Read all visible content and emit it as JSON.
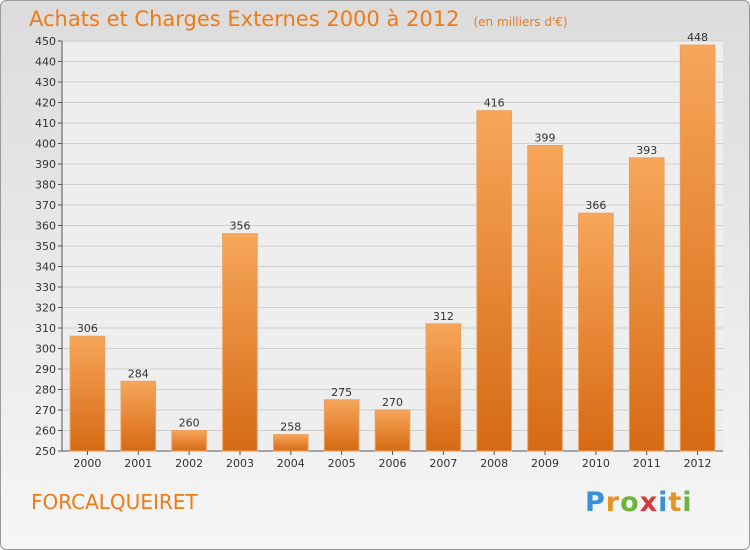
{
  "title": "Achats et Charges Externes 2000 à 2012",
  "subtitle": "(en milliers d'€)",
  "commune": "FORCALQUEIRET",
  "logo": {
    "letters": [
      "P",
      "r",
      "o",
      "x",
      "i",
      "t",
      "i"
    ],
    "colors": [
      "#3a8fd8",
      "#e89220",
      "#6ab63a",
      "#d83a3a",
      "#3a8fd8",
      "#e89220",
      "#6ab63a"
    ]
  },
  "colors": {
    "accent": "#f07a14",
    "bar_top": "#f7a65a",
    "bar_bottom": "#d66a14"
  },
  "chart_data": {
    "type": "bar",
    "title": "Achats et Charges Externes 2000 à 2012",
    "subtitle": "(en milliers d'€)",
    "xlabel": "",
    "ylabel": "",
    "categories": [
      "2000",
      "2001",
      "2002",
      "2003",
      "2004",
      "2005",
      "2006",
      "2007",
      "2008",
      "2009",
      "2010",
      "2011",
      "2012"
    ],
    "values": [
      306,
      284,
      260,
      356,
      258,
      275,
      270,
      312,
      416,
      399,
      366,
      393,
      448
    ],
    "ylim": [
      250,
      450
    ],
    "yticks": [
      250,
      260,
      270,
      280,
      290,
      300,
      310,
      320,
      330,
      340,
      350,
      360,
      370,
      380,
      390,
      400,
      410,
      420,
      430,
      440,
      450
    ],
    "grid": true,
    "legend": "none"
  }
}
